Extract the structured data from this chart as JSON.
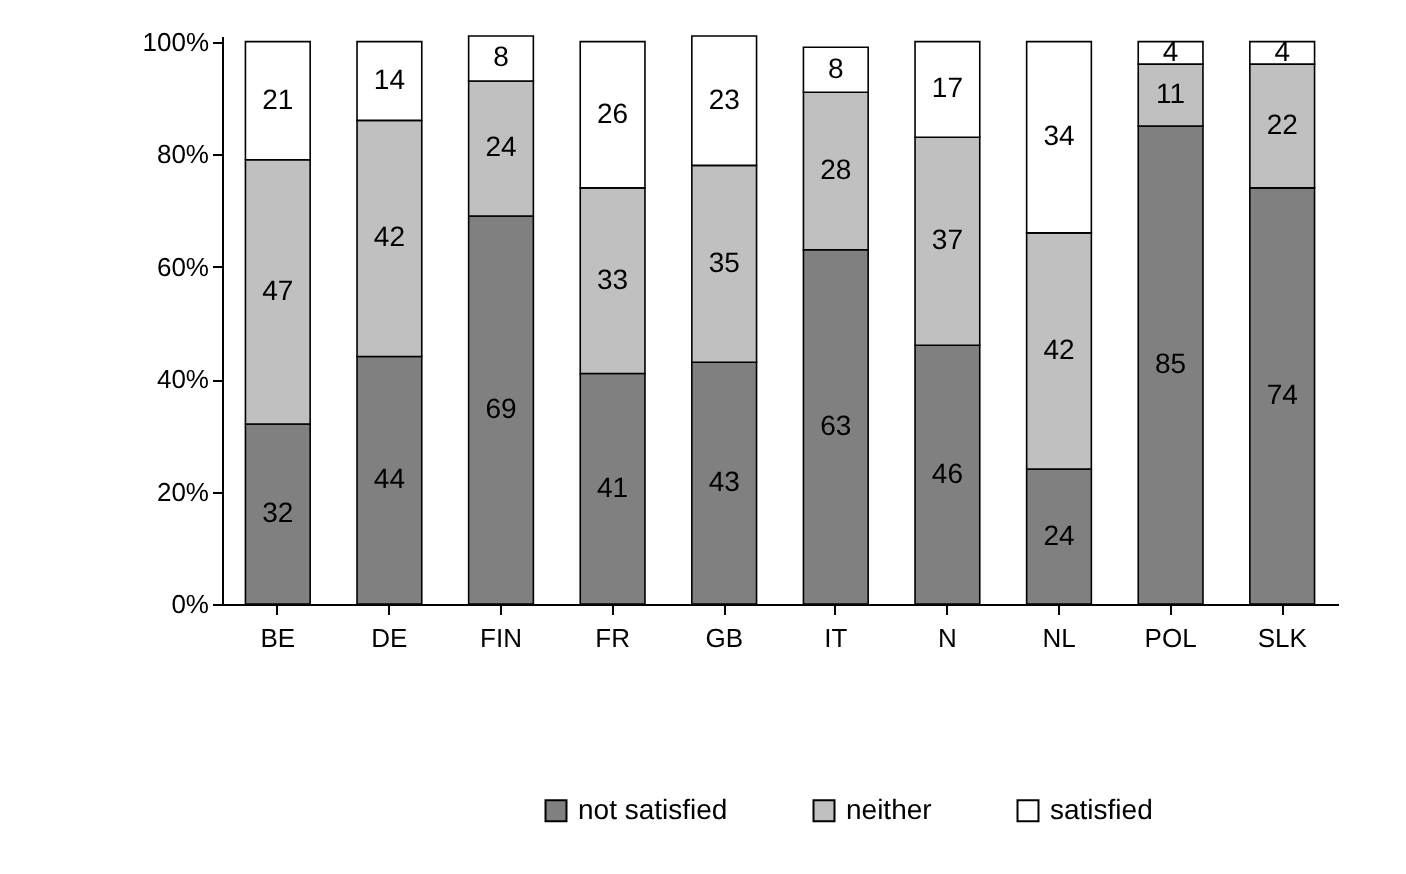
{
  "chart_data": {
    "type": "bar",
    "stacked": true,
    "categories": [
      "BE",
      "DE",
      "FIN",
      "FR",
      "GB",
      "IT",
      "N",
      "NL",
      "POL",
      "SLK"
    ],
    "series": [
      {
        "name": "not satisfied",
        "color": "#808080",
        "values": [
          32,
          44,
          69,
          41,
          43,
          63,
          46,
          24,
          85,
          74
        ]
      },
      {
        "name": "neither",
        "color": "#c0c0c0",
        "values": [
          47,
          42,
          24,
          33,
          35,
          28,
          37,
          42,
          11,
          22
        ]
      },
      {
        "name": "satisfied",
        "color": "#ffffff",
        "values": [
          21,
          14,
          8,
          26,
          23,
          8,
          17,
          34,
          4,
          4
        ]
      }
    ],
    "data_labels": true,
    "ylim": [
      0,
      101
    ],
    "yticks": [
      {
        "value": 0,
        "label": "0%"
      },
      {
        "value": 20,
        "label": "20%"
      },
      {
        "value": 40,
        "label": "40%"
      },
      {
        "value": 60,
        "label": "60%"
      },
      {
        "value": 80,
        "label": "80%"
      },
      {
        "value": 100,
        "label": "100%"
      }
    ],
    "grid": false,
    "legend": "bottom"
  }
}
